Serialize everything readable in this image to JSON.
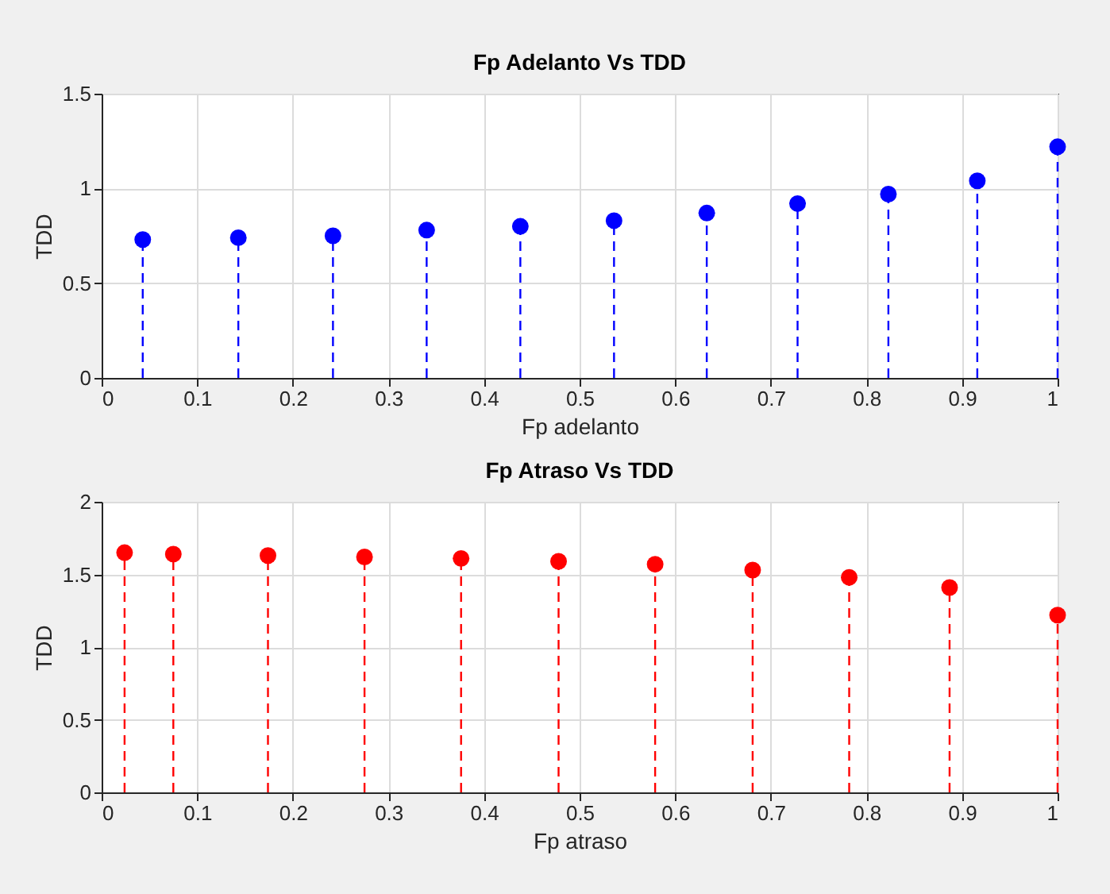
{
  "chart_data": [
    {
      "type": "lollipop",
      "title": "Fp Adelanto Vs TDD",
      "xlabel": "Fp adelanto",
      "ylabel": "TDD",
      "x": [
        0.043,
        0.143,
        0.242,
        0.34,
        0.438,
        0.536,
        0.633,
        0.728,
        0.823,
        0.916,
        1
      ],
      "series": [
        {
          "color": "#0000ff",
          "values": [
            0.73,
            0.74,
            0.75,
            0.78,
            0.8,
            0.83,
            0.87,
            0.92,
            0.97,
            1.04,
            1.22
          ]
        }
      ],
      "xlim": [
        0,
        1
      ],
      "xticks": [
        0,
        0.1,
        0.2,
        0.3,
        0.4,
        0.5,
        0.6,
        0.7,
        0.8,
        0.9,
        1
      ],
      "ylim": [
        0,
        1.5
      ],
      "yticks": [
        0,
        0.5,
        1,
        1.5
      ],
      "grid": true,
      "marker": "circle",
      "line_style": "dashed"
    },
    {
      "type": "lollipop",
      "title": "Fp Atraso Vs TDD",
      "xlabel": "Fp atraso",
      "ylabel": "TDD",
      "x": [
        0.024,
        0.075,
        0.174,
        0.275,
        0.376,
        0.478,
        0.579,
        0.681,
        0.782,
        0.887,
        1
      ],
      "series": [
        {
          "color": "#ff0000",
          "values": [
            1.65,
            1.64,
            1.63,
            1.62,
            1.61,
            1.59,
            1.57,
            1.53,
            1.48,
            1.41,
            1.22
          ]
        }
      ],
      "xlim": [
        0,
        1
      ],
      "xticks": [
        0,
        0.1,
        0.2,
        0.3,
        0.4,
        0.5,
        0.6,
        0.7,
        0.8,
        0.9,
        1
      ],
      "ylim": [
        0,
        2
      ],
      "yticks": [
        0,
        0.5,
        1,
        1.5,
        2
      ],
      "grid": true,
      "marker": "circle",
      "line_style": "dashed"
    }
  ]
}
